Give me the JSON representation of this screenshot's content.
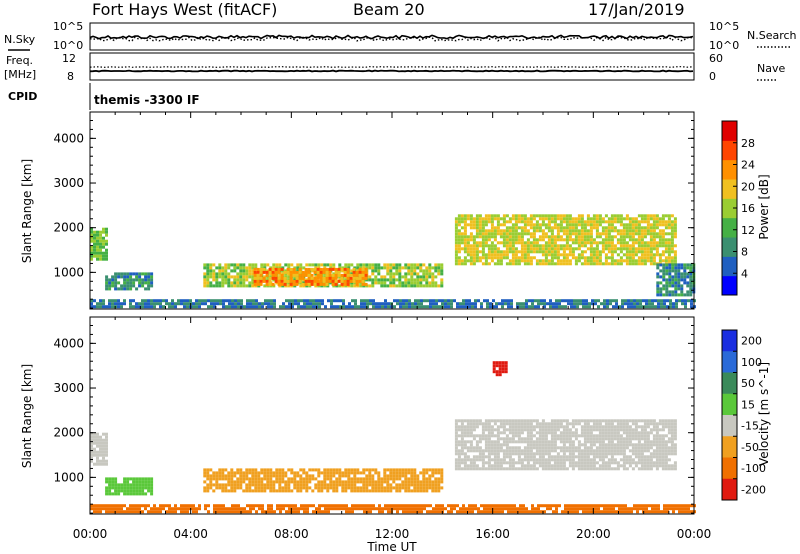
{
  "header": {
    "station": "Fort Hays West (fitACF)",
    "beam": "Beam 20",
    "date": "17/Jan/2019"
  },
  "small_panels": {
    "nsky_label": "N.Sky",
    "nsearch_label": "N.Search",
    "freq_label_line1": "Freq.",
    "freq_label_line2": "[MHz]",
    "nave_label": "Nave",
    "cpid_label": "CPID",
    "cpid_text": "themis -3300 IF",
    "noise_ticks": [
      "10^5",
      "10^0"
    ],
    "freq_ticks": [
      "12",
      "8"
    ],
    "nave_ticks": [
      "60",
      "0"
    ]
  },
  "colors": {
    "frame": "#000000",
    "power_scale": [
      "#0000ff",
      "#1f5fc0",
      "#3a8f70",
      "#45b045",
      "#9acd32",
      "#f0c020",
      "#ff9000",
      "#ff4500",
      "#e00000"
    ],
    "velocity_scale": [
      "#1a2ee0",
      "#2a6ad8",
      "#3a8a5a",
      "#5ac83a",
      "#c8c8c0",
      "#f0a020",
      "#f07000",
      "#e01a10"
    ]
  },
  "chart_data": [
    {
      "type": "heatmap",
      "title": "Power",
      "xlabel": "Time UT",
      "ylabel": "Slant Range [km]",
      "x_ticks": [
        "00:00",
        "04:00",
        "08:00",
        "12:00",
        "16:00",
        "20:00",
        "00:00"
      ],
      "xlim": [
        0,
        24
      ],
      "y_ticks": [
        1000,
        2000,
        3000,
        4000
      ],
      "ylim": [
        180,
        4590
      ],
      "colorbar": {
        "label": "Power [dB]",
        "ticks": [
          4,
          8,
          12,
          16,
          20,
          24,
          28
        ],
        "range": [
          0,
          32
        ]
      },
      "features": [
        {
          "name": "near-range band",
          "time_start": 0.0,
          "time_end": 24.0,
          "range_km": [
            250,
            400
          ],
          "value": 8
        },
        {
          "name": "morning echo",
          "time_start": 0.0,
          "time_end": 0.6,
          "range_km": [
            1300,
            2000
          ],
          "value": 16
        },
        {
          "name": "early echo",
          "time_start": 0.6,
          "time_end": 2.5,
          "range_km": [
            600,
            1000
          ],
          "value": 10
        },
        {
          "name": "main band low",
          "time_start": 4.5,
          "time_end": 14.0,
          "range_km": [
            700,
            1200
          ],
          "value": 18
        },
        {
          "name": "main band peak",
          "time_start": 6.5,
          "time_end": 11.0,
          "range_km": [
            750,
            1100
          ],
          "value": 26
        },
        {
          "name": "evening arc",
          "time_start": 14.5,
          "time_end": 23.3,
          "range_km": [
            1200,
            2300
          ],
          "value": 20
        },
        {
          "name": "late echo",
          "time_start": 22.5,
          "time_end": 24.0,
          "range_km": [
            500,
            1200
          ],
          "value": 10
        }
      ]
    },
    {
      "type": "heatmap",
      "title": "Velocity",
      "xlabel": "Time UT",
      "ylabel": "Slant Range [km]",
      "x_ticks": [
        "00:00",
        "04:00",
        "08:00",
        "12:00",
        "16:00",
        "20:00",
        "00:00"
      ],
      "xlim": [
        0,
        24
      ],
      "y_ticks": [
        1000,
        2000,
        3000,
        4000
      ],
      "ylim": [
        180,
        4590
      ],
      "colorbar": {
        "label": "Velocity [m s^-1]",
        "ticks": [
          200,
          100,
          50,
          15,
          -15,
          -50,
          -100,
          -200
        ],
        "range": [
          -250,
          250
        ]
      },
      "features": [
        {
          "name": "near-range band",
          "time_start": 0.0,
          "time_end": 24.0,
          "range_km": [
            250,
            400
          ],
          "value": -60
        },
        {
          "name": "morning echo",
          "time_start": 0.0,
          "time_end": 0.6,
          "range_km": [
            1300,
            2000
          ],
          "value": 0
        },
        {
          "name": "early echo",
          "time_start": 0.6,
          "time_end": 2.5,
          "range_km": [
            600,
            1000
          ],
          "value": 40
        },
        {
          "name": "main band",
          "time_start": 4.5,
          "time_end": 14.0,
          "range_km": [
            700,
            1200
          ],
          "value": -40
        },
        {
          "name": "evening arc",
          "time_start": 14.5,
          "time_end": 23.3,
          "range_km": [
            1200,
            2300
          ],
          "value": 0
        },
        {
          "name": "high range echo",
          "time_start": 16.0,
          "time_end": 16.5,
          "range_km": [
            3300,
            3600
          ],
          "value": -200
        }
      ]
    }
  ]
}
